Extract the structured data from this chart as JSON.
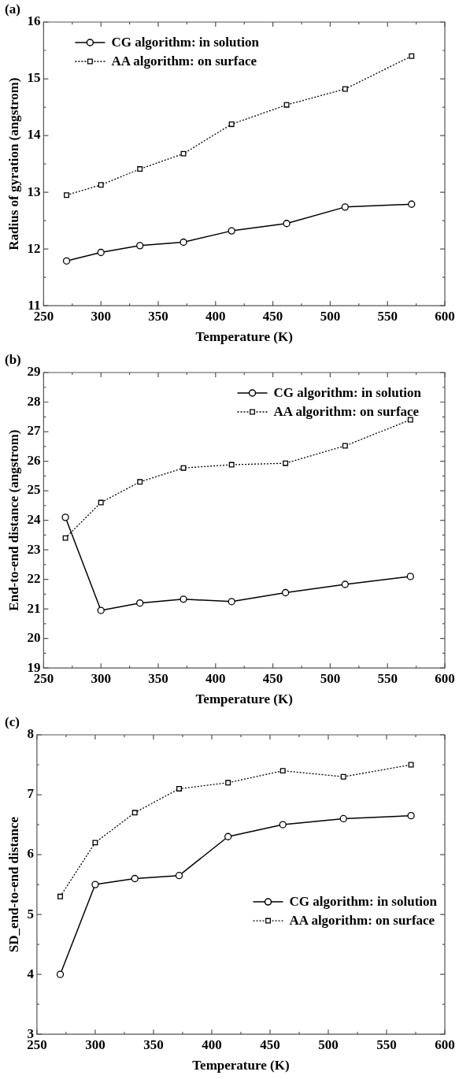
{
  "chart_data": [
    {
      "type": "line",
      "title": "(a)",
      "xlabel": "Temperature (K)",
      "ylabel": "Radius of gyration (angstrom)",
      "xlim": [
        250,
        600
      ],
      "ylim": [
        11,
        16
      ],
      "xticks": [
        250,
        {
          "value": 275,
          "label": null
        },
        300,
        {
          "value": 325,
          "label": null
        },
        350,
        {
          "value": 375,
          "label": null
        },
        400,
        {
          "value": 425,
          "label": null
        },
        450,
        {
          "value": 475,
          "label": null
        },
        500,
        {
          "value": 525,
          "label": null
        },
        550,
        {
          "value": 575,
          "label": null
        },
        600
      ],
      "yticks": [
        11,
        {
          "value": 11.5,
          "label": null
        },
        12,
        {
          "value": 12.5,
          "label": null
        },
        13,
        {
          "value": 13.5,
          "label": null
        },
        14,
        {
          "value": 14.5,
          "label": null
        },
        15,
        {
          "value": 15.5,
          "label": null
        },
        16
      ],
      "x": [
        270,
        300,
        334,
        372,
        414,
        462,
        513,
        571
      ],
      "legend": "top left",
      "series": [
        {
          "name": "CG algorithm: in solution",
          "color": "#000000",
          "marker": "circle",
          "line_style": "solid",
          "values": [
            11.79,
            11.94,
            12.06,
            12.12,
            12.32,
            12.45,
            12.74,
            12.79
          ]
        },
        {
          "name": "AA algorithm: on surface",
          "color": "#000000",
          "marker": "square",
          "line_style": "dotted",
          "values": [
            12.95,
            13.13,
            13.41,
            13.68,
            14.2,
            14.54,
            14.82,
            15.4
          ]
        }
      ]
    },
    {
      "type": "line",
      "title": "(b)",
      "xlabel": "Temperature (K)",
      "ylabel": "End-to-end distance (angstrom)",
      "xlim": [
        250,
        600
      ],
      "ylim": [
        19,
        29
      ],
      "xticks": [
        250,
        {
          "value": 275,
          "label": null
        },
        300,
        {
          "value": 325,
          "label": null
        },
        350,
        {
          "value": 375,
          "label": null
        },
        400,
        {
          "value": 425,
          "label": null
        },
        450,
        {
          "value": 475,
          "label": null
        },
        500,
        {
          "value": 525,
          "label": null
        },
        550,
        {
          "value": 575,
          "label": null
        },
        600
      ],
      "yticks": [
        19,
        {
          "value": 19.5,
          "label": null
        },
        20,
        {
          "value": 20.5,
          "label": null
        },
        21,
        {
          "value": 21.5,
          "label": null
        },
        22,
        {
          "value": 22.5,
          "label": null
        },
        23,
        {
          "value": 23.5,
          "label": null
        },
        24,
        {
          "value": 24.5,
          "label": null
        },
        25,
        {
          "value": 25.5,
          "label": null
        },
        26,
        {
          "value": 26.5,
          "label": null
        },
        27,
        {
          "value": 27.5,
          "label": null
        },
        28,
        {
          "value": 28.5,
          "label": null
        },
        29
      ],
      "x": [
        269,
        300,
        334,
        372,
        414,
        461,
        513,
        570
      ],
      "legend": "top",
      "series": [
        {
          "name": "CG algorithm: in solution",
          "color": "#000000",
          "marker": "circle",
          "line_style": "solid",
          "values": [
            24.1,
            20.95,
            21.2,
            21.33,
            21.25,
            21.55,
            21.83,
            22.1
          ]
        },
        {
          "name": "AA algorithm: on surface",
          "color": "#000000",
          "marker": "square",
          "line_style": "dotted",
          "values": [
            23.4,
            24.6,
            25.3,
            25.77,
            25.88,
            25.93,
            26.52,
            27.4
          ]
        }
      ]
    },
    {
      "type": "line",
      "title": "(c)",
      "xlabel": "Temperature (K)",
      "ylabel": "SD_end-to-end distance",
      "xlim": [
        250,
        600
      ],
      "ylim": [
        3,
        8
      ],
      "xticks": [
        250,
        {
          "value": 275,
          "label": null
        },
        300,
        {
          "value": 325,
          "label": null
        },
        350,
        {
          "value": 375,
          "label": null
        },
        400,
        {
          "value": 425,
          "label": null
        },
        450,
        {
          "value": 475,
          "label": null
        },
        500,
        {
          "value": 525,
          "label": null
        },
        550,
        {
          "value": 575,
          "label": null
        },
        600
      ],
      "yticks": [
        3,
        {
          "value": 3.5,
          "label": null
        },
        4,
        {
          "value": 4.5,
          "label": null
        },
        5,
        {
          "value": 5.5,
          "label": null
        },
        6,
        {
          "value": 6.5,
          "label": null
        },
        7,
        {
          "value": 7.5,
          "label": null
        },
        8
      ],
      "x": [
        270,
        300,
        334,
        372,
        414,
        461,
        513,
        571
      ],
      "legend": "right",
      "series": [
        {
          "name": "CG algorithm: in solution",
          "color": "#000000",
          "marker": "circle",
          "line_style": "solid",
          "values": [
            4.0,
            5.5,
            5.6,
            5.65,
            6.3,
            6.5,
            6.6,
            6.65
          ]
        },
        {
          "name": "AA algorithm: on surface",
          "color": "#000000",
          "marker": "square",
          "line_style": "dotted",
          "values": [
            5.3,
            6.2,
            6.7,
            7.1,
            7.2,
            7.4,
            7.3,
            7.5
          ]
        }
      ]
    }
  ]
}
